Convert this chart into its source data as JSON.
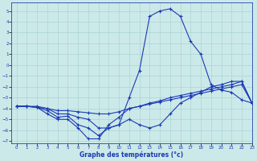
{
  "xlabel": "Graphe des températures (°c)",
  "background_color": "#cce9e9",
  "grid_color": "#aad4d4",
  "line_color": "#1a3ab5",
  "xlim": [
    -0.5,
    23
  ],
  "ylim": [
    -7.2,
    5.8
  ],
  "xticks": [
    0,
    1,
    2,
    3,
    4,
    5,
    6,
    7,
    8,
    9,
    10,
    11,
    12,
    13,
    14,
    15,
    16,
    17,
    18,
    19,
    20,
    21,
    22,
    23
  ],
  "yticks": [
    5,
    4,
    3,
    2,
    1,
    0,
    -1,
    -2,
    -3,
    -4,
    -5,
    -6,
    -7
  ],
  "line_spike_x": [
    0,
    1,
    2,
    3,
    4,
    5,
    6,
    7,
    8,
    9,
    10,
    11,
    12,
    13,
    14,
    15,
    16,
    17,
    18,
    19,
    20,
    21,
    22,
    23
  ],
  "line_spike_y": [
    -3.8,
    -3.8,
    -3.8,
    -4.0,
    -4.5,
    -4.5,
    -4.8,
    -5.0,
    -5.8,
    -5.8,
    -5.5,
    -3.0,
    -0.5,
    4.5,
    5.0,
    5.2,
    4.5,
    2.2,
    1.0,
    -1.8,
    -2.3,
    -2.5,
    -3.2,
    -3.5
  ],
  "line_flat_x": [
    0,
    1,
    2,
    3,
    4,
    5,
    6,
    7,
    8,
    9,
    10,
    11,
    12,
    13,
    14,
    15,
    16,
    17,
    18,
    19,
    20,
    21,
    22,
    23
  ],
  "line_flat_y": [
    -3.8,
    -3.8,
    -3.9,
    -4.0,
    -4.2,
    -4.2,
    -4.3,
    -4.4,
    -4.5,
    -4.5,
    -4.3,
    -4.0,
    -3.8,
    -3.6,
    -3.4,
    -3.2,
    -3.0,
    -2.8,
    -2.6,
    -2.4,
    -2.2,
    -2.0,
    -1.8,
    -3.5
  ],
  "line_deep_x": [
    0,
    1,
    2,
    3,
    4,
    5,
    6,
    7,
    8,
    9,
    10,
    11,
    12,
    13,
    14,
    15,
    16,
    17,
    18,
    19,
    20,
    21,
    22,
    23
  ],
  "line_deep_y": [
    -3.8,
    -3.8,
    -3.9,
    -4.5,
    -5.0,
    -5.0,
    -5.8,
    -6.8,
    -6.8,
    -5.5,
    -4.8,
    -4.0,
    -3.8,
    -3.5,
    -3.3,
    -3.0,
    -2.8,
    -2.6,
    -2.4,
    -2.2,
    -2.0,
    -1.8,
    -1.5,
    -3.5
  ],
  "line_mid_x": [
    0,
    1,
    2,
    3,
    4,
    5,
    6,
    7,
    8,
    9,
    10,
    11,
    12,
    13,
    14,
    15,
    16,
    17,
    18,
    19,
    20,
    21,
    22,
    23
  ],
  "line_mid_y": [
    -3.8,
    -3.8,
    -3.9,
    -4.2,
    -4.8,
    -4.7,
    -5.5,
    -5.8,
    -6.5,
    -5.8,
    -5.5,
    -5.0,
    -5.5,
    -5.8,
    -5.5,
    -4.5,
    -3.5,
    -3.0,
    -2.5,
    -2.0,
    -1.8,
    -1.5,
    -1.5,
    -3.5
  ]
}
